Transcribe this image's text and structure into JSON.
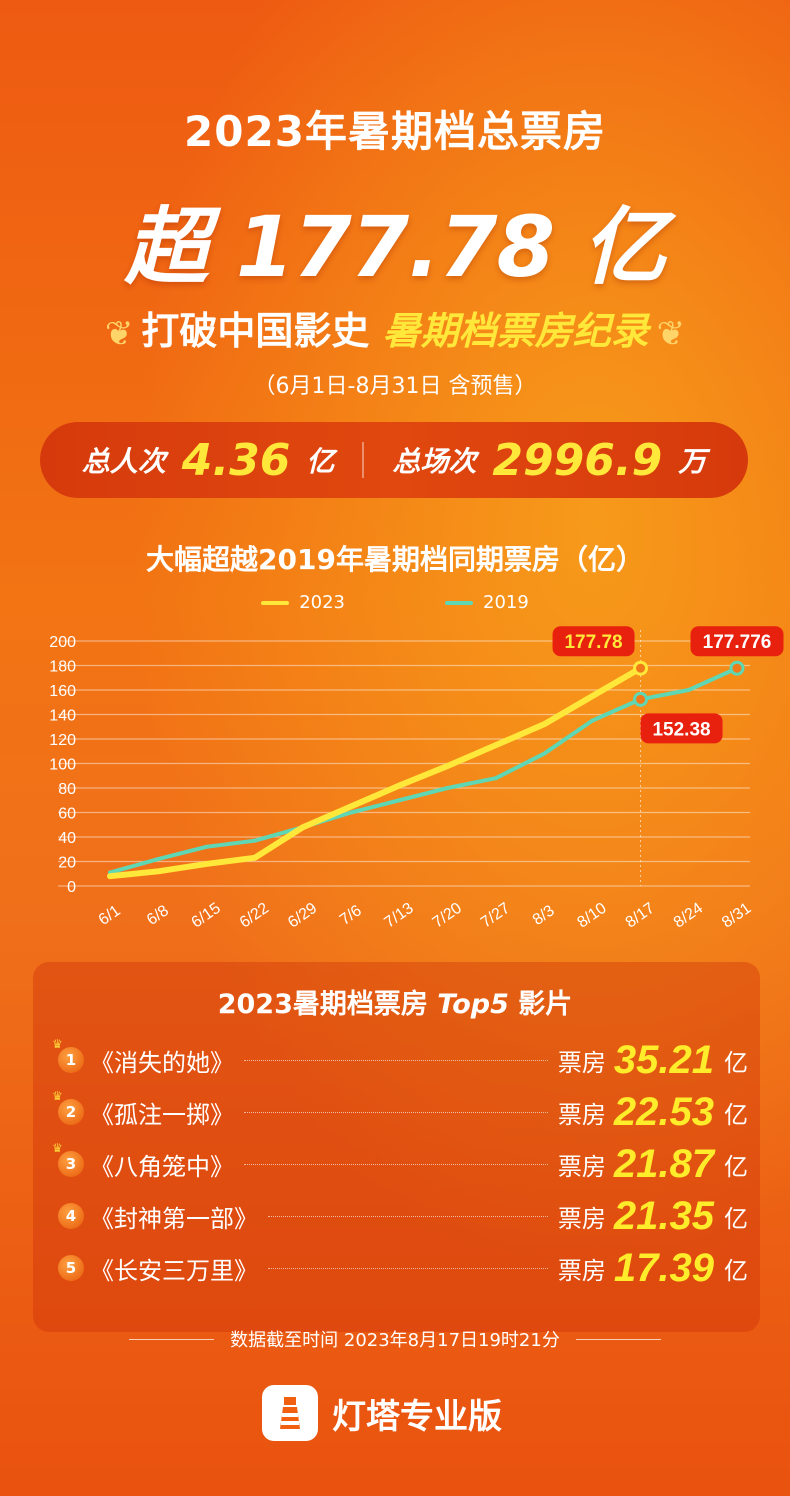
{
  "header": {
    "title": "2023年暑期档总票房",
    "headline": "超 177.78 亿",
    "record_prefix": "打破中国影史",
    "record_highlight": "暑期档票房纪录",
    "period": "（6月1日-8月31日 含预售）"
  },
  "stats": {
    "audience_label": "总人次",
    "audience_value": "4.36",
    "audience_unit": "亿",
    "shows_label": "总场次",
    "shows_value": "2996.9",
    "shows_unit": "万"
  },
  "chart_data": {
    "type": "line",
    "title": "大幅超越2019年暑期档同期票房（亿）",
    "x": [
      "6/1",
      "6/8",
      "6/15",
      "6/22",
      "6/29",
      "7/6",
      "7/13",
      "7/20",
      "7/27",
      "8/3",
      "8/10",
      "8/17",
      "8/24",
      "8/31"
    ],
    "ylim": [
      0,
      200
    ],
    "yticks": [
      0,
      20,
      40,
      60,
      80,
      100,
      120,
      140,
      160,
      180,
      200
    ],
    "grid": true,
    "legend_position": "top",
    "series": [
      {
        "name": "2023",
        "color": "#ffe83a",
        "values": [
          8,
          12,
          18,
          23,
          48,
          65,
          82,
          98,
          115,
          132,
          155,
          177.78,
          null,
          null
        ]
      },
      {
        "name": "2019",
        "color": "#5fd6b4",
        "values": [
          11,
          22,
          32,
          37,
          48,
          60,
          70,
          80,
          88,
          108,
          135,
          152.38,
          160,
          177.776
        ]
      }
    ],
    "annotations": [
      {
        "text": "177.78",
        "x": "8/17",
        "series": "2023"
      },
      {
        "text": "152.38",
        "x": "8/17",
        "series": "2019"
      },
      {
        "text": "177.776",
        "x": "8/31",
        "series": "2019"
      }
    ]
  },
  "top5": {
    "title_prefix": "2023暑期档票房 ",
    "title_italic": "Top5",
    "title_suffix": " 影片",
    "box_label": "票房",
    "unit": "亿",
    "items": [
      {
        "rank": "1",
        "title": "《消失的她》",
        "value": "35.21"
      },
      {
        "rank": "2",
        "title": "《孤注一掷》",
        "value": "22.53"
      },
      {
        "rank": "3",
        "title": "《八角笼中》",
        "value": "21.87"
      },
      {
        "rank": "4",
        "title": "《封神第一部》",
        "value": "21.35"
      },
      {
        "rank": "5",
        "title": "《长安三万里》",
        "value": "17.39"
      }
    ]
  },
  "footer": {
    "data_time": "数据截至时间 2023年8月17日19时21分",
    "brand": "灯塔专业版"
  }
}
